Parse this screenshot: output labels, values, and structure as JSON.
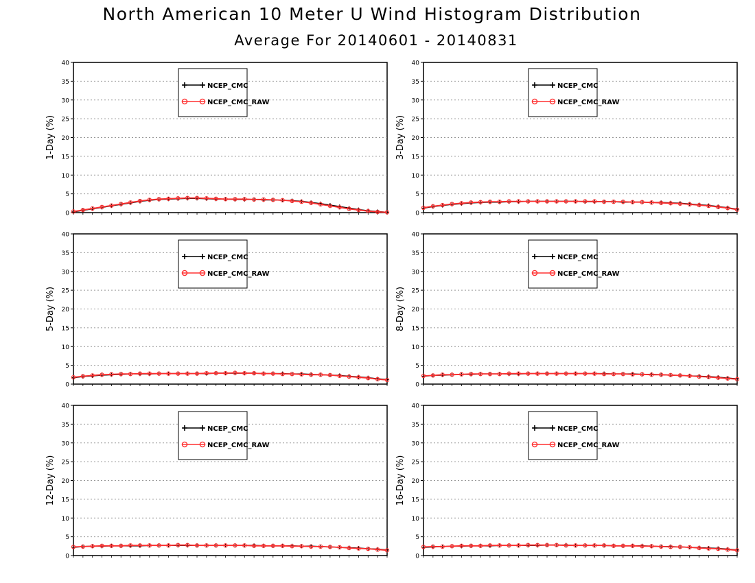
{
  "title": "North American 10 Meter U Wind Histogram Distribution",
  "subtitle": "Average For 20140601 - 20140831",
  "colors": {
    "series_1": "#000000",
    "series_2": "#ff3030",
    "grid": "#999999"
  },
  "chart_data": [
    {
      "type": "line",
      "ylabel": "1-Day (%)",
      "ylim": [
        0,
        40
      ],
      "yticks": [
        "0",
        "5",
        "10",
        "15",
        "20",
        "25",
        "30",
        "35",
        "40"
      ],
      "grid": true,
      "legend_position": "top-left",
      "series": [
        {
          "name": "NCEP_CMC",
          "marker": "plus",
          "values": [
            0.2,
            0.6,
            1.0,
            1.4,
            1.8,
            2.2,
            2.6,
            3.0,
            3.3,
            3.5,
            3.6,
            3.7,
            3.8,
            3.8,
            3.7,
            3.6,
            3.6,
            3.5,
            3.5,
            3.5,
            3.4,
            3.4,
            3.3,
            3.2,
            3.0,
            2.7,
            2.4,
            2.0,
            1.6,
            1.2,
            0.8,
            0.5,
            0.3,
            0.1
          ]
        },
        {
          "name": "NCEP_CMC_RAW",
          "marker": "circle",
          "values": [
            0.3,
            0.7,
            1.1,
            1.5,
            1.9,
            2.3,
            2.7,
            3.1,
            3.4,
            3.6,
            3.7,
            3.8,
            3.9,
            3.9,
            3.8,
            3.7,
            3.6,
            3.6,
            3.6,
            3.5,
            3.5,
            3.4,
            3.3,
            3.1,
            2.9,
            2.6,
            2.2,
            1.8,
            1.4,
            1.0,
            0.7,
            0.4,
            0.2,
            0.1
          ]
        }
      ]
    },
    {
      "type": "line",
      "ylabel": "3-Day (%)",
      "ylim": [
        0,
        40
      ],
      "yticks": [
        "0",
        "5",
        "10",
        "15",
        "20",
        "25",
        "30",
        "35",
        "40"
      ],
      "grid": true,
      "legend_position": "top-left",
      "series": [
        {
          "name": "NCEP_CMC",
          "marker": "plus",
          "values": [
            1.2,
            1.6,
            1.9,
            2.2,
            2.4,
            2.6,
            2.7,
            2.8,
            2.8,
            2.9,
            2.9,
            3.0,
            3.0,
            3.0,
            3.0,
            3.0,
            3.0,
            2.9,
            2.9,
            2.9,
            2.9,
            2.8,
            2.8,
            2.8,
            2.7,
            2.7,
            2.6,
            2.5,
            2.3,
            2.1,
            1.9,
            1.6,
            1.3,
            0.9
          ]
        },
        {
          "name": "NCEP_CMC_RAW",
          "marker": "circle",
          "values": [
            1.3,
            1.7,
            2.0,
            2.3,
            2.5,
            2.7,
            2.8,
            2.9,
            2.9,
            3.0,
            3.0,
            3.0,
            3.0,
            3.0,
            3.0,
            3.0,
            3.0,
            3.0,
            3.0,
            2.9,
            2.9,
            2.9,
            2.8,
            2.8,
            2.7,
            2.6,
            2.5,
            2.4,
            2.2,
            2.0,
            1.8,
            1.5,
            1.2,
            0.8
          ]
        }
      ]
    },
    {
      "type": "line",
      "ylabel": "5-Day (%)",
      "ylim": [
        0,
        40
      ],
      "yticks": [
        "0",
        "5",
        "10",
        "15",
        "20",
        "25",
        "30",
        "35",
        "40"
      ],
      "grid": true,
      "legend_position": "top-left",
      "series": [
        {
          "name": "NCEP_CMC",
          "marker": "plus",
          "values": [
            1.7,
            2.0,
            2.2,
            2.4,
            2.5,
            2.6,
            2.7,
            2.7,
            2.7,
            2.8,
            2.8,
            2.8,
            2.8,
            2.8,
            2.8,
            2.9,
            2.9,
            2.9,
            2.9,
            2.9,
            2.8,
            2.8,
            2.8,
            2.7,
            2.7,
            2.6,
            2.5,
            2.4,
            2.3,
            2.1,
            1.9,
            1.7,
            1.4,
            1.2
          ]
        },
        {
          "name": "NCEP_CMC_RAW",
          "marker": "circle",
          "values": [
            1.8,
            2.1,
            2.3,
            2.5,
            2.6,
            2.7,
            2.7,
            2.8,
            2.8,
            2.8,
            2.8,
            2.8,
            2.8,
            2.8,
            2.9,
            2.9,
            2.9,
            3.0,
            2.9,
            2.9,
            2.8,
            2.8,
            2.7,
            2.7,
            2.6,
            2.5,
            2.5,
            2.4,
            2.2,
            2.0,
            1.8,
            1.6,
            1.3,
            1.1
          ]
        }
      ]
    },
    {
      "type": "line",
      "ylabel": "8-Day (%)",
      "ylim": [
        0,
        40
      ],
      "yticks": [
        "0",
        "5",
        "10",
        "15",
        "20",
        "25",
        "30",
        "35",
        "40"
      ],
      "grid": true,
      "legend_position": "top-left",
      "series": [
        {
          "name": "NCEP_CMC",
          "marker": "plus",
          "values": [
            2.1,
            2.3,
            2.4,
            2.5,
            2.6,
            2.6,
            2.7,
            2.7,
            2.7,
            2.7,
            2.7,
            2.8,
            2.8,
            2.8,
            2.8,
            2.8,
            2.8,
            2.8,
            2.8,
            2.8,
            2.7,
            2.7,
            2.7,
            2.6,
            2.6,
            2.5,
            2.4,
            2.3,
            2.2,
            2.1,
            2.0,
            1.8,
            1.6,
            1.4
          ]
        },
        {
          "name": "NCEP_CMC_RAW",
          "marker": "circle",
          "values": [
            2.2,
            2.3,
            2.5,
            2.5,
            2.6,
            2.7,
            2.7,
            2.7,
            2.7,
            2.8,
            2.8,
            2.8,
            2.8,
            2.8,
            2.8,
            2.8,
            2.8,
            2.8,
            2.8,
            2.7,
            2.7,
            2.7,
            2.6,
            2.6,
            2.5,
            2.5,
            2.4,
            2.3,
            2.2,
            2.0,
            1.9,
            1.7,
            1.5,
            1.3
          ]
        }
      ]
    },
    {
      "type": "line",
      "ylabel": "12-Day (%)",
      "ylim": [
        0,
        40
      ],
      "yticks": [
        "0",
        "5",
        "10",
        "15",
        "20",
        "25",
        "30",
        "35",
        "40"
      ],
      "grid": true,
      "legend_position": "top-left",
      "series": [
        {
          "name": "NCEP_CMC",
          "marker": "plus",
          "values": [
            2.2,
            2.4,
            2.5,
            2.5,
            2.6,
            2.6,
            2.6,
            2.6,
            2.7,
            2.7,
            2.7,
            2.7,
            2.7,
            2.7,
            2.7,
            2.7,
            2.7,
            2.7,
            2.7,
            2.7,
            2.6,
            2.6,
            2.6,
            2.6,
            2.5,
            2.5,
            2.4,
            2.3,
            2.2,
            2.1,
            2.0,
            1.8,
            1.7,
            1.5
          ]
        },
        {
          "name": "NCEP_CMC_RAW",
          "marker": "circle",
          "values": [
            2.3,
            2.4,
            2.5,
            2.6,
            2.6,
            2.6,
            2.7,
            2.7,
            2.7,
            2.7,
            2.7,
            2.8,
            2.8,
            2.7,
            2.7,
            2.7,
            2.7,
            2.7,
            2.7,
            2.6,
            2.6,
            2.6,
            2.6,
            2.5,
            2.5,
            2.4,
            2.4,
            2.3,
            2.2,
            2.0,
            1.9,
            1.8,
            1.6,
            1.4
          ]
        }
      ]
    },
    {
      "type": "line",
      "ylabel": "16-Day (%)",
      "ylim": [
        0,
        40
      ],
      "yticks": [
        "0",
        "5",
        "10",
        "15",
        "20",
        "25",
        "30",
        "35",
        "40"
      ],
      "grid": true,
      "legend_position": "top-left",
      "series": [
        {
          "name": "NCEP_CMC",
          "marker": "plus",
          "values": [
            2.2,
            2.3,
            2.4,
            2.5,
            2.5,
            2.6,
            2.6,
            2.6,
            2.7,
            2.7,
            2.7,
            2.7,
            2.7,
            2.8,
            2.8,
            2.8,
            2.7,
            2.7,
            2.7,
            2.7,
            2.6,
            2.6,
            2.6,
            2.6,
            2.5,
            2.4,
            2.4,
            2.3,
            2.2,
            2.1,
            2.0,
            1.9,
            1.7,
            1.5
          ]
        },
        {
          "name": "NCEP_CMC_RAW",
          "marker": "circle",
          "values": [
            2.3,
            2.4,
            2.4,
            2.5,
            2.6,
            2.6,
            2.6,
            2.7,
            2.7,
            2.7,
            2.7,
            2.8,
            2.8,
            2.8,
            2.8,
            2.7,
            2.7,
            2.7,
            2.7,
            2.7,
            2.6,
            2.6,
            2.6,
            2.5,
            2.5,
            2.4,
            2.3,
            2.3,
            2.2,
            2.0,
            1.9,
            1.8,
            1.6,
            1.4
          ]
        }
      ]
    }
  ]
}
